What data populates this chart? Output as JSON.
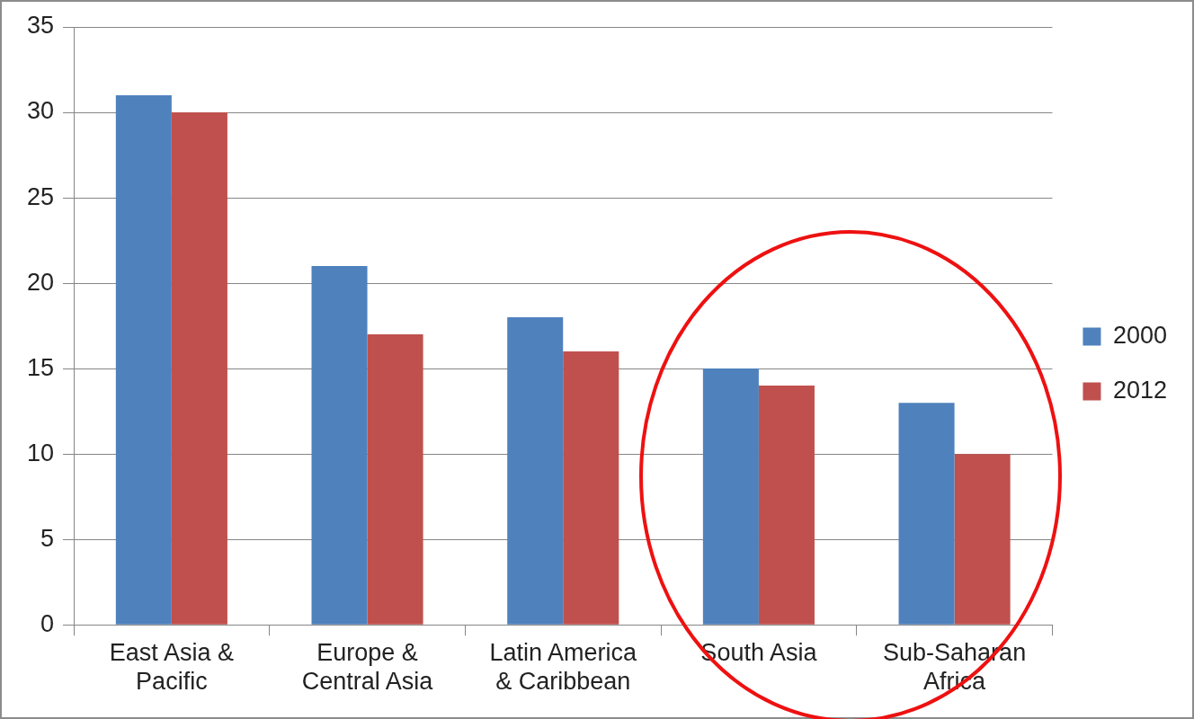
{
  "chart_data": {
    "type": "bar",
    "categories": [
      "East Asia & Pacific",
      "Europe & Central Asia",
      "Latin America & Caribbean",
      "South Asia",
      "Sub-Saharan Africa"
    ],
    "series": [
      {
        "name": "2000",
        "color": "#4f81bd",
        "values": [
          31,
          21,
          18,
          15,
          13
        ]
      },
      {
        "name": "2012",
        "color": "#c0504d",
        "values": [
          30,
          17,
          16,
          14,
          10
        ]
      }
    ],
    "ylim": [
      0,
      35
    ],
    "yticks": [
      0,
      5,
      10,
      15,
      20,
      25,
      30,
      35
    ],
    "grid": "y",
    "legend": "right"
  }
}
